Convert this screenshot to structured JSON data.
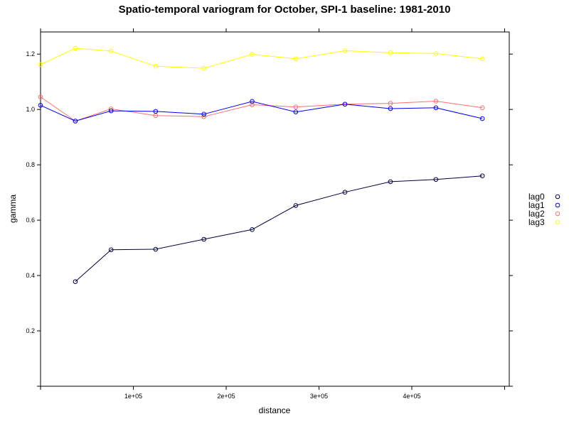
{
  "chart_data": {
    "type": "line",
    "title": "Spatio-temporal variogram for October, SPI-1 baseline: 1981-2010",
    "xlabel": "distance",
    "ylabel": "gamma",
    "xlim": [
      0,
      505000
    ],
    "ylim": [
      0.0,
      1.28
    ],
    "x_ticks": [
      100000,
      200000,
      300000,
      400000
    ],
    "x_tick_labels": [
      "1e+05",
      "2e+05",
      "3e+05",
      "4e+05"
    ],
    "y_ticks": [
      0.2,
      0.4,
      0.6,
      0.8,
      1.0,
      1.2
    ],
    "y_tick_labels": [
      "0.2",
      "0.4",
      "0.6",
      "0.8",
      "1.0",
      "1.2"
    ],
    "legend_placement": "right",
    "series": [
      {
        "name": "lag0",
        "color": "#000040",
        "x": [
          37500,
          76000,
          124000,
          176000,
          228000,
          275000,
          328000,
          377000,
          426000,
          476000
        ],
        "values": [
          0.378,
          0.493,
          0.495,
          0.531,
          0.566,
          0.653,
          0.701,
          0.739,
          0.747,
          0.76
        ]
      },
      {
        "name": "lag1",
        "color": "#0000ff",
        "x": [
          0,
          37500,
          76000,
          124000,
          176000,
          228000,
          275000,
          328000,
          377000,
          426000,
          476000
        ],
        "values": [
          1.015,
          0.958,
          0.995,
          0.993,
          0.983,
          1.029,
          0.991,
          1.019,
          1.003,
          1.006,
          0.967
        ]
      },
      {
        "name": "lag2",
        "color": "#ff6f6f",
        "x": [
          0,
          37500,
          76000,
          124000,
          176000,
          228000,
          275000,
          328000,
          377000,
          426000,
          476000
        ],
        "values": [
          1.045,
          0.958,
          1.002,
          0.978,
          0.974,
          1.017,
          1.009,
          1.019,
          1.022,
          1.03,
          1.006
        ]
      },
      {
        "name": "lag3",
        "color": "#ffff00",
        "x": [
          0,
          37500,
          76000,
          124000,
          176000,
          228000,
          275000,
          328000,
          377000,
          426000,
          476000
        ],
        "values": [
          1.162,
          1.221,
          1.211,
          1.156,
          1.149,
          1.199,
          1.183,
          1.212,
          1.205,
          1.202,
          1.183
        ]
      }
    ]
  }
}
